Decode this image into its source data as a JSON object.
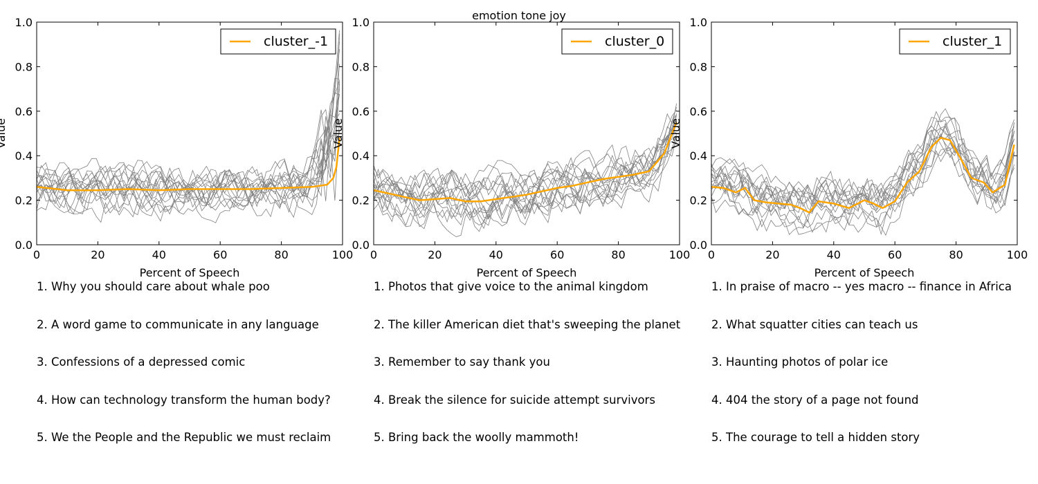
{
  "figure_title": "emotion tone joy",
  "colors": {
    "mean_line": "#ffa500",
    "sample_lines": "#808080",
    "axes": "#000000"
  },
  "chart_data": [
    {
      "type": "line",
      "xlabel": "Percent of Speech",
      "ylabel": "Value",
      "xlim": [
        0,
        100
      ],
      "ylim": [
        0.0,
        1.0
      ],
      "xticks": [
        "0",
        "20",
        "40",
        "60",
        "80",
        "100"
      ],
      "yticks": [
        "0.0",
        "0.2",
        "0.4",
        "0.6",
        "0.8",
        "1.0"
      ],
      "grid": false,
      "legend_position": "top-right",
      "series": [
        {
          "name": "cluster_-1",
          "x": [
            0,
            10,
            20,
            30,
            40,
            50,
            60,
            70,
            80,
            90,
            95,
            97,
            98,
            99
          ],
          "values": [
            0.26,
            0.245,
            0.245,
            0.25,
            0.245,
            0.25,
            0.25,
            0.25,
            0.255,
            0.26,
            0.27,
            0.3,
            0.35,
            0.48
          ]
        }
      ],
      "sample_count": 16,
      "titles": [
        "1. Why you should care about whale poo",
        "2. A word game to communicate in any language",
        "3. Confessions of a depressed comic",
        "4. How can technology transform the human body?",
        "5. We the People  and the Republic we must reclaim"
      ]
    },
    {
      "type": "line",
      "xlabel": "Percent of Speech",
      "ylabel": "Value",
      "xlim": [
        0,
        100
      ],
      "ylim": [
        0.0,
        1.0
      ],
      "xticks": [
        "0",
        "20",
        "40",
        "60",
        "80",
        "100"
      ],
      "yticks": [
        "0.0",
        "0.2",
        "0.4",
        "0.6",
        "0.8",
        "1.0"
      ],
      "grid": false,
      "legend_position": "top-right",
      "series": [
        {
          "name": "cluster_0",
          "x": [
            0,
            5,
            10,
            15,
            20,
            25,
            30,
            35,
            40,
            45,
            50,
            55,
            60,
            65,
            70,
            75,
            80,
            85,
            90,
            95,
            99
          ],
          "values": [
            0.245,
            0.23,
            0.215,
            0.2,
            0.205,
            0.21,
            0.195,
            0.195,
            0.205,
            0.215,
            0.225,
            0.24,
            0.255,
            0.265,
            0.28,
            0.295,
            0.305,
            0.315,
            0.33,
            0.41,
            0.55
          ]
        }
      ],
      "sample_count": 16,
      "titles": [
        "1. Photos that give voice to the animal kingdom",
        "2. The killer American diet that's sweeping the planet",
        "3. Remember to say thank you",
        "4. Break the silence for suicide attempt survivors",
        "5. Bring back the woolly mammoth!"
      ]
    },
    {
      "type": "line",
      "xlabel": "Percent of Speech",
      "ylabel": "Value",
      "xlim": [
        0,
        100
      ],
      "ylim": [
        0.0,
        1.0
      ],
      "xticks": [
        "0",
        "20",
        "40",
        "60",
        "80",
        "100"
      ],
      "yticks": [
        "0.0",
        "0.2",
        "0.4",
        "0.6",
        "0.8",
        "1.0"
      ],
      "grid": false,
      "legend_position": "top-right",
      "series": [
        {
          "name": "cluster_1",
          "x": [
            0,
            4,
            8,
            11,
            14,
            18,
            22,
            26,
            29,
            32,
            35,
            40,
            45,
            50,
            53,
            56,
            60,
            64,
            68,
            72,
            75,
            78,
            81,
            85,
            89,
            92,
            96,
            99
          ],
          "values": [
            0.26,
            0.255,
            0.235,
            0.255,
            0.2,
            0.19,
            0.185,
            0.18,
            0.165,
            0.145,
            0.195,
            0.185,
            0.165,
            0.2,
            0.185,
            0.165,
            0.195,
            0.28,
            0.33,
            0.44,
            0.48,
            0.47,
            0.4,
            0.3,
            0.28,
            0.235,
            0.27,
            0.45
          ]
        }
      ],
      "sample_count": 15,
      "titles": [
        "1. In praise of macro -- yes  macro -- finance in Africa",
        "2. What squatter cities can teach us",
        "3. Haunting photos of polar ice",
        "4. 404  the story of a page not found",
        "5. The courage to tell a hidden story"
      ]
    }
  ]
}
